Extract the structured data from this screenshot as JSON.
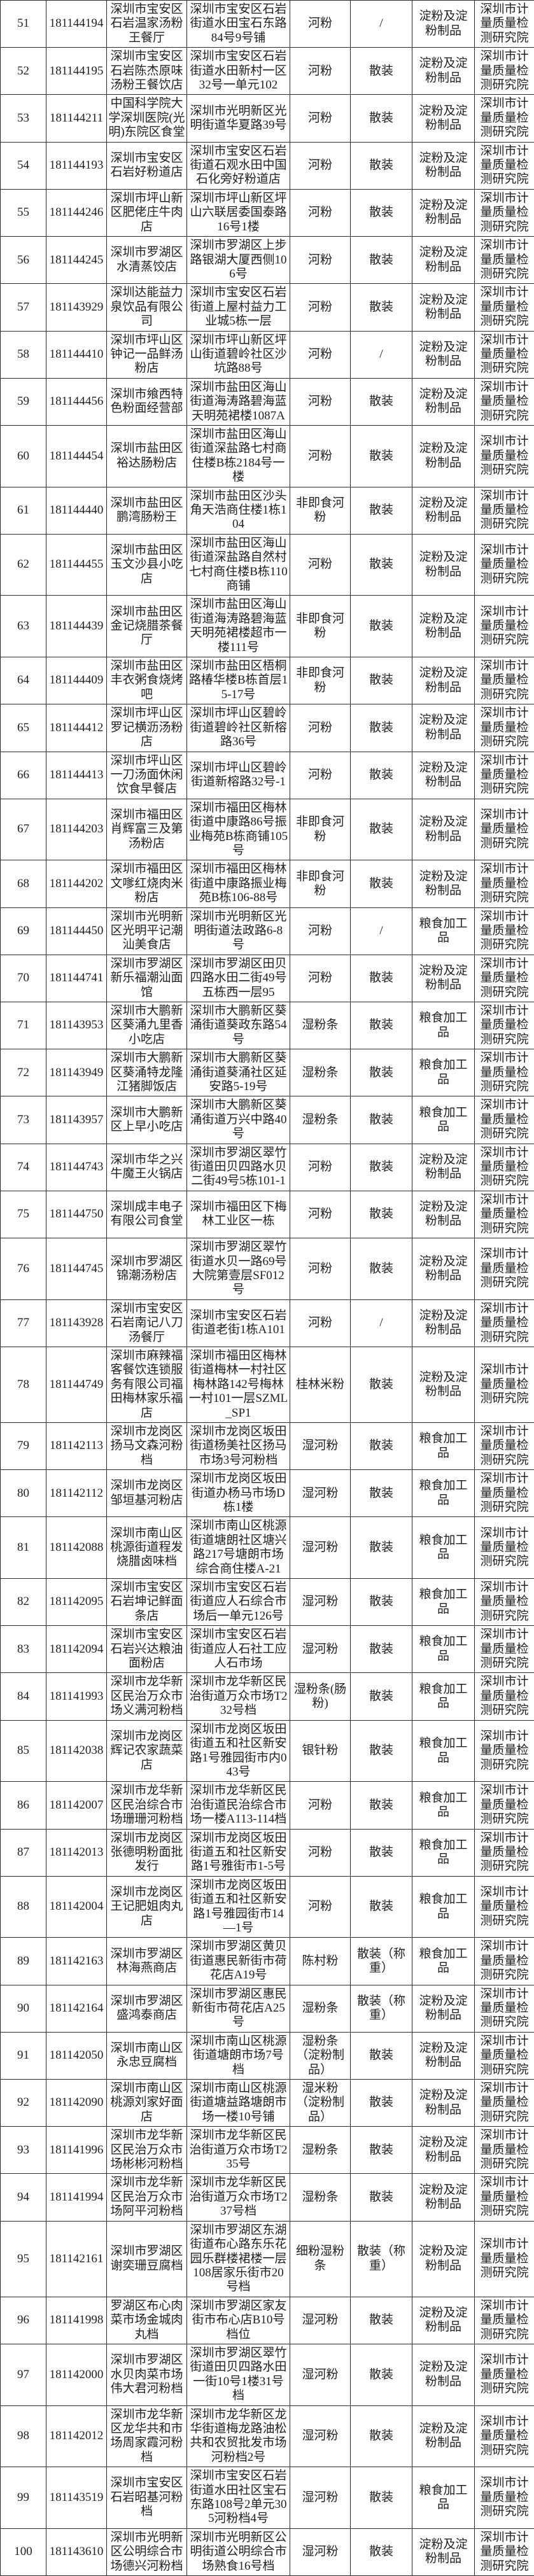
{
  "table": {
    "agency_common": "深圳市计量质量检测研究院",
    "rows": [
      {
        "no": "51",
        "id": "181144194",
        "name": "深圳市宝安区石岩温家汤粉王餐厅",
        "address": "深圳市宝安区石岩街道水田宝石东路84号9号铺",
        "product": "河粉",
        "packaging": "/",
        "category": "淀粉及淀粉制品",
        "agency": "深圳市计量质量检测研究院"
      },
      {
        "no": "52",
        "id": "181144195",
        "name": "深圳市宝安区石岩陈杰原味汤粉王餐饮店",
        "address": "深圳市宝安区石岩街道水田新村一区32号一单元102",
        "product": "河粉",
        "packaging": "散装",
        "category": "淀粉及淀粉制品",
        "agency": "深圳市计量质量检测研究院"
      },
      {
        "no": "53",
        "id": "181144211",
        "name": "中国科学院大学深圳医院(光明)东院区食堂",
        "address": "深圳市光明新区光明街道华夏路39号",
        "product": "河粉",
        "packaging": "散装",
        "category": "淀粉及淀粉制品",
        "agency": "深圳市计量质量检测研究院"
      },
      {
        "no": "54",
        "id": "181144193",
        "name": "深圳市宝安区石岩好粉道店",
        "address": "深圳市宝安区石岩街道石观水田中国石化旁好粉道店",
        "product": "河粉",
        "packaging": "散装",
        "category": "淀粉及淀粉制品",
        "agency": "深圳市计量质量检测研究院"
      },
      {
        "no": "55",
        "id": "181144246",
        "name": "深圳市坪山新区肥佬庄牛肉店",
        "address": "深圳市坪山新区坪山六联居委国泰路16号1楼",
        "product": "河粉",
        "packaging": "散装",
        "category": "淀粉及淀粉制品",
        "agency": "深圳市计量质量检测研究院"
      },
      {
        "no": "56",
        "id": "181144245",
        "name": "深圳市罗湖区水清蒸饺店",
        "address": "深圳市罗湖区上步路银湖大厦西侧106号",
        "product": "河粉",
        "packaging": "散装",
        "category": "淀粉及淀粉制品",
        "agency": "深圳市计量质量检测研究院"
      },
      {
        "no": "57",
        "id": "181143929",
        "name": "深圳达能益力泉饮品有限公司",
        "address": "深圳市宝安区石岩街道上屋村益力工业城5栋一层",
        "product": "河粉",
        "packaging": "散装",
        "category": "淀粉及淀粉制品",
        "agency": "深圳市计量质量检测研究院"
      },
      {
        "no": "58",
        "id": "181144410",
        "name": "深圳市坪山区钟记一品鲜汤粉店",
        "address": "深圳市坪山新区坪山街道碧岭社区沙坑路88号",
        "product": "河粉",
        "packaging": "/",
        "category": "淀粉及淀粉制品",
        "agency": "深圳市计量质量检测研究院"
      },
      {
        "no": "59",
        "id": "181144456",
        "name": "深圳市飨西特色粉面经营部",
        "address": "深圳市盐田区海山街道海涛路碧海蓝天明苑裙楼1087A",
        "product": "河粉",
        "packaging": "散装",
        "category": "淀粉及淀粉制品",
        "agency": "深圳市计量质量检测研究院"
      },
      {
        "no": "60",
        "id": "181144454",
        "name": "深圳市盐田区裕达肠粉店",
        "address": "深圳市盐田区海山街道深盐路七村商住楼B栋2184号一楼",
        "product": "河粉",
        "packaging": "散装",
        "category": "淀粉及淀粉制品",
        "agency": "深圳市计量质量检测研究院"
      },
      {
        "no": "61",
        "id": "181144440",
        "name": "深圳市盐田区鹏湾肠粉王",
        "address": "深圳市盐田区沙头角天浩商住楼1栋104",
        "product": "非即食河粉",
        "packaging": "散装",
        "category": "淀粉及淀粉制品",
        "agency": "深圳市计量质量检测研究院"
      },
      {
        "no": "62",
        "id": "181144455",
        "name": "深圳市盐田区玉文沙县小吃店",
        "address": "深圳市盐田区海山街道深盐路自然村七村商住楼B栋110商铺",
        "product": "河粉",
        "packaging": "散装",
        "category": "淀粉及淀粉制品",
        "agency": "深圳市计量质量检测研究院"
      },
      {
        "no": "63",
        "id": "181144439",
        "name": "深圳市盐田区金记烧腊茶餐厅",
        "address": "深圳市盐田区海山街道海涛路碧海蓝天明苑裙楼超市一楼111号",
        "product": "非即食河粉",
        "packaging": "散装",
        "category": "淀粉及淀粉制品",
        "agency": "深圳市计量质量检测研究院"
      },
      {
        "no": "64",
        "id": "181144409",
        "name": "深圳市盐田区丰衣粥食烧烤吧",
        "address": "深圳市盐田区梧桐路椿华楼B栋首层15-17号",
        "product": "非即食河粉",
        "packaging": "散装",
        "category": "淀粉及淀粉制品",
        "agency": "深圳市计量质量检测研究院"
      },
      {
        "no": "65",
        "id": "181144412",
        "name": "深圳市坪山区罗记横沥汤粉店",
        "address": "深圳市坪山区碧岭街道碧岭社区新榕路36号",
        "product": "河粉",
        "packaging": "散装",
        "category": "淀粉及淀粉制品",
        "agency": "深圳市计量质量检测研究院"
      },
      {
        "no": "66",
        "id": "181144413",
        "name": "深圳市坪山区一刀汤面休闲饮食早餐店",
        "address": "深圳市坪山区碧岭街道新榕路32号-1",
        "product": "河粉",
        "packaging": "散装",
        "category": "淀粉及淀粉制品",
        "agency": "深圳市计量质量检测研究院"
      },
      {
        "no": "67",
        "id": "181144203",
        "name": "深圳市福田区肖辉富三及第汤粉店",
        "address": "深圳市福田区梅林街道中康路86号振业梅苑B栋商铺105号",
        "product": "非即食河粉",
        "packaging": "散装",
        "category": "淀粉及淀粉制品",
        "agency": "深圳市计量质量检测研究院"
      },
      {
        "no": "68",
        "id": "181144202",
        "name": "深圳市福田区文嗲红烧肉米粉店",
        "address": "深圳市福田区梅林街道中康路振业梅苑B栋106-88号",
        "product": "非即食河粉",
        "packaging": "散装",
        "category": "淀粉及淀粉制品",
        "agency": "深圳市计量质量检测研究院"
      },
      {
        "no": "69",
        "id": "181144450",
        "name": "深圳市光明新区光明平记潮汕美食店",
        "address": "深圳市光明新区光明街道法政路6-8号",
        "product": "河粉",
        "packaging": "/",
        "category": "粮食加工品",
        "agency": "深圳市计量质量检测研究院"
      },
      {
        "no": "70",
        "id": "181144741",
        "name": "深圳市罗湖区新乐福潮汕面馆",
        "address": "深圳市罗湖区田贝四路水田二街49号五栋西一层95",
        "product": "河粉",
        "packaging": "散装",
        "category": "淀粉及淀粉制品",
        "agency": "深圳市计量质量检测研究院"
      },
      {
        "no": "71",
        "id": "181143953",
        "name": "深圳市大鹏新区葵涌九里香小吃店",
        "address": "深圳市大鹏新区葵涌街道葵政东路54号",
        "product": "湿粉条",
        "packaging": "散装",
        "category": "粮食加工品",
        "agency": "深圳市计量质量检测研究院"
      },
      {
        "no": "72",
        "id": "181143949",
        "name": "深圳市大鹏新区葵涌特龙隆江猪脚饭店",
        "address": "深圳市大鹏新区葵涌街道葵涌社区延安路5-19号",
        "product": "湿粉条",
        "packaging": "散装",
        "category": "粮食加工品",
        "agency": "深圳市计量质量检测研究院"
      },
      {
        "no": "73",
        "id": "181143957",
        "name": "深圳市大鹏新区上早小吃店",
        "address": "深圳市大鹏新区葵涌街道万兴中路40号",
        "product": "湿粉条",
        "packaging": "散装",
        "category": "粮食加工品",
        "agency": "深圳市计量质量检测研究院"
      },
      {
        "no": "74",
        "id": "181144743",
        "name": "深圳市华之兴牛魔王火锅店",
        "address": "深圳市罗湖区翠竹街道田贝四路水贝二街49号5栋101-1",
        "product": "河粉",
        "packaging": "散装",
        "category": "淀粉及淀粉制品",
        "agency": "深圳市计量质量检测研究院"
      },
      {
        "no": "75",
        "id": "181144750",
        "name": "深圳成丰电子有限公司食堂",
        "address": "深圳市福田区下梅林工业区一栋",
        "product": "河粉",
        "packaging": "散装",
        "category": "淀粉及淀粉制品",
        "agency": "深圳市计量质量检测研究院"
      },
      {
        "no": "76",
        "id": "181144745",
        "name": "深圳市罗湖区锦潮汤粉店",
        "address": "深圳市罗湖区翠竹街道水贝一路69号大院第壹层SF012号",
        "product": "河粉",
        "packaging": "散装",
        "category": "淀粉及淀粉制品",
        "agency": "深圳市计量质量检测研究院"
      },
      {
        "no": "77",
        "id": "181143928",
        "name": "深圳市宝安区石岩南记八刀汤餐厅",
        "address": "深圳市宝安区石岩街道老街1栋A101",
        "product": "河粉",
        "packaging": "/",
        "category": "淀粉及淀粉制品",
        "agency": "深圳市计量质量检测研究院"
      },
      {
        "no": "78",
        "id": "181144749",
        "name": "深圳市麻辣福客餐饮连锁服务有限公司福田梅林家乐福店",
        "address": "深圳市福田区梅林街道梅林一村社区梅林路142号梅林一村101一层SZML_SP1",
        "product": "桂林米粉",
        "packaging": "散装",
        "category": "淀粉及淀粉制品",
        "agency": "深圳市计量质量检测研究院"
      },
      {
        "no": "79",
        "id": "181142113",
        "name": "深圳市龙岗区扬马文森河粉档",
        "address": "深圳市龙岗区坂田街道杨美社区扬马市场3号河粉档",
        "product": "湿河粉",
        "packaging": "散装",
        "category": "粮食加工品",
        "agency": "深圳市计量质量检测研究院"
      },
      {
        "no": "80",
        "id": "181142112",
        "name": "深圳市龙岗区邹垣基河粉店",
        "address": "深圳市龙岗区坂田街道办杨马市场D栋1楼",
        "product": "湿河粉",
        "packaging": "散装",
        "category": "粮食加工品",
        "agency": "深圳市计量质量检测研究院"
      },
      {
        "no": "81",
        "id": "181142088",
        "name": "深圳市南山区桃源街道程发烧腊卤味档",
        "address": "深圳市南山区桃源街道塘朗社区塘兴路217号塘朗市场综合商住楼A-21",
        "product": "湿河粉",
        "packaging": "散装",
        "category": "粮食加工品",
        "agency": "深圳市计量质量检测研究院"
      },
      {
        "no": "82",
        "id": "181142095",
        "name": "深圳市宝安区石岩坤记鲜面条店",
        "address": "深圳市宝安区石岩街道应人石综合市场后一单元126号",
        "product": "湿河粉",
        "packaging": "散装",
        "category": "粮食加工品",
        "agency": "深圳市计量质量检测研究院"
      },
      {
        "no": "83",
        "id": "181142094",
        "name": "深圳市宝安区石岩兴达粮油面粉店",
        "address": "深圳市宝安区石岩街道应人石社工应人石市场",
        "product": "湿河粉",
        "packaging": "散装",
        "category": "粮食加工品",
        "agency": "深圳市计量质量检测研究院"
      },
      {
        "no": "84",
        "id": "181141993",
        "name": "深圳市龙华新区民治万众市场义满河粉档",
        "address": "深圳市龙华新区民治街道万众市场T232号档",
        "product": "湿粉条(肠粉)",
        "packaging": "散装",
        "category": "粮食加工品",
        "agency": "深圳市计量质量检测研究院"
      },
      {
        "no": "85",
        "id": "181142038",
        "name": "深圳市龙岗区辉记农家蔬菜店",
        "address": "深圳市龙岗区坂田街道五和社区新安路1号雅园街市内043号",
        "product": "银针粉",
        "packaging": "散装",
        "category": "粮食加工品",
        "agency": "深圳市计量质量检测研究院"
      },
      {
        "no": "86",
        "id": "181142007",
        "name": "深圳市龙华新区民治综合市场珊珊河粉档",
        "address": "深圳市龙华新区民治街道民治综合市场一楼A113-114档",
        "product": "河粉",
        "packaging": "散装",
        "category": "粮食加工品",
        "agency": "深圳市计量质量检测研究院"
      },
      {
        "no": "87",
        "id": "181142013",
        "name": "深圳市龙岗区张德明粉面批发行",
        "address": "深圳市龙岗区坂田街道五和社区新安路1号雅街市1-5号",
        "product": "河粉",
        "packaging": "散装",
        "category": "粮食加工品",
        "agency": "深圳市计量质量检测研究院"
      },
      {
        "no": "88",
        "id": "181142004",
        "name": "深圳市龙岗区王记肥姐肉丸店",
        "address": "深圳市龙岗区坂田街道五和社区新安路1号雅园街市14—1号",
        "product": "河粉",
        "packaging": "散装",
        "category": "粮食加工品",
        "agency": "深圳市计量质量检测研究院"
      },
      {
        "no": "89",
        "id": "181142163",
        "name": "深圳市罗湖区林海燕商店",
        "address": "深圳市罗湖区黄贝街道惠民新街市荷花店A19号",
        "product": "陈村粉",
        "packaging": "散装（称重）",
        "category": "粮食加工品",
        "agency": "深圳市计量质量检测研究院"
      },
      {
        "no": "90",
        "id": "181142164",
        "name": "深圳市罗湖区盛鸿泰商店",
        "address": "深圳市罗湖区惠民新街市荷花店A25号",
        "product": "湿粉条",
        "packaging": "散装（称重）",
        "category": "淀粉及淀粉制品",
        "agency": "深圳市计量质量检测研究院"
      },
      {
        "no": "91",
        "id": "181142050",
        "name": "深圳市南山区永忠豆腐档",
        "address": "深圳市南山区桃源街道塘朗市场7号档",
        "product": "湿粉条（淀粉制品）",
        "packaging": "散装",
        "category": "淀粉及淀粉制品",
        "agency": "深圳市计量质量检测研究院"
      },
      {
        "no": "92",
        "id": "181142090",
        "name": "深圳市南山区桃源刘家好面店",
        "address": "深圳市南山区桃源街道塘益路塘朗市场一楼10号铺",
        "product": "湿米粉（淀粉制品）",
        "packaging": "散装",
        "category": "淀粉及淀粉制品",
        "agency": "深圳市计量质量检测研究院"
      },
      {
        "no": "93",
        "id": "181141996",
        "name": "深圳市龙华新区民治万众市场彬彬河粉档",
        "address": "深圳市龙华新区民治街道万众市场T235号",
        "product": "湿粉条",
        "packaging": "散装",
        "category": "淀粉及淀粉制品",
        "agency": "深圳市计量质量检测研究院"
      },
      {
        "no": "94",
        "id": "181141994",
        "name": "深圳市龙华新区民治万众市场阿平河粉档",
        "address": "深圳市龙华新区民治街道万众市场T237号档",
        "product": "湿粉条",
        "packaging": "散装",
        "category": "淀粉及淀粉制品",
        "agency": "深圳市计量质量检测研究院"
      },
      {
        "no": "95",
        "id": "181142161",
        "name": "深圳市罗湖区谢奕珊豆腐档",
        "address": "深圳市罗湖区东湖街道布心路东乐花园乐群楼裙楼一层108居家乐街市20号档",
        "product": "细粉湿粉条",
        "packaging": "散装（称重）",
        "category": "淀粉及淀粉制品",
        "agency": "深圳市计量质量检测研究院"
      },
      {
        "no": "96",
        "id": "181141998",
        "name": "罗湖区布心肉菜市场金城肉丸档",
        "address": "深圳市罗湖区家友街市布心店B10号档位",
        "product": "湿河粉",
        "packaging": "散装",
        "category": "淀粉及淀粉制品",
        "agency": "深圳市计量质量检测研究院"
      },
      {
        "no": "97",
        "id": "181142000",
        "name": "深圳市罗湖区水贝肉菜市场伟大君河粉档",
        "address": "深圳市罗湖区翠竹街道田贝四路水田一街10号1楼31号档",
        "product": "湿河粉",
        "packaging": "散装",
        "category": "淀粉及淀粉制品",
        "agency": "深圳市计量质量检测研究院"
      },
      {
        "no": "98",
        "id": "181142012",
        "name": "深圳市龙华新区龙华共和市场周家霞河粉档",
        "address": "深圳市龙华新区龙华街道梅龙路油松共和农贸批发市场河粉档2号",
        "product": "湿河粉",
        "packaging": "散装",
        "category": "淀粉及淀粉制品",
        "agency": "深圳市计量质量检测研究院"
      },
      {
        "no": "99",
        "id": "181143519",
        "name": "深圳市宝安区石岩昭基河粉档",
        "address": "深圳市宝安区石岩街道水田社区宝石东路108号2单元305河粉档4号",
        "product": "湿河粉",
        "packaging": "散装",
        "category": "粮食加工品",
        "agency": "深圳市计量质量检测研究院"
      },
      {
        "no": "100",
        "id": "181143610",
        "name": "深圳市光明新区公明综合市场德兴河粉档",
        "address": "深圳市光明新区公明街道公明综合市场熟食16号档",
        "product": "湿河粉",
        "packaging": "散装",
        "category": "淀粉及淀粉制品",
        "agency": "深圳市计量质量检测研究院"
      }
    ]
  }
}
